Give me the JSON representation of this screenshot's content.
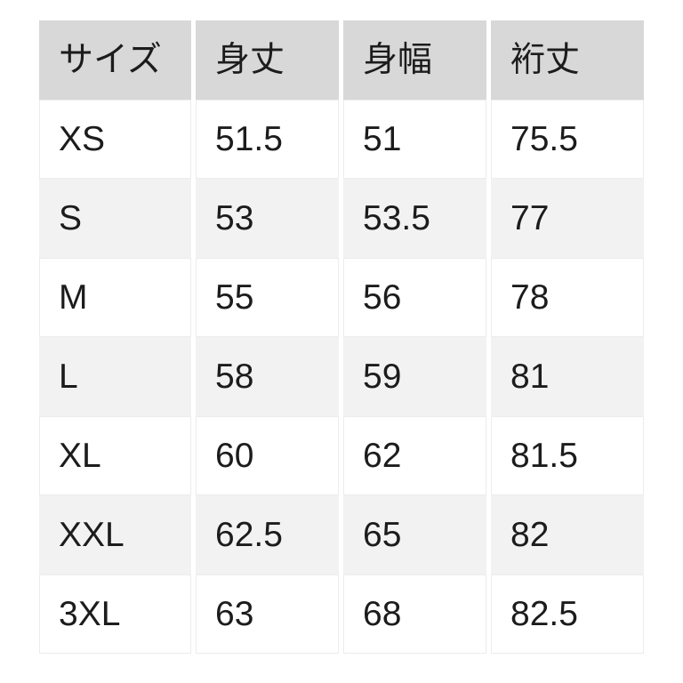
{
  "chart_data": {
    "type": "table",
    "columns": [
      "サイズ",
      "身丈",
      "身幅",
      "裄丈"
    ],
    "rows": [
      [
        "XS",
        "51.5",
        "51",
        "75.5"
      ],
      [
        "S",
        "53",
        "53.5",
        "77"
      ],
      [
        "M",
        "55",
        "56",
        "78"
      ],
      [
        "L",
        "58",
        "59",
        "81"
      ],
      [
        "XL",
        "60",
        "62",
        "81.5"
      ],
      [
        "XXL",
        "62.5",
        "65",
        "82"
      ],
      [
        "3XL",
        "63",
        "68",
        "82.5"
      ]
    ]
  },
  "colors": {
    "header_bg": "#d8d8d8",
    "row_bg": "#ffffff",
    "row_alt_bg": "#f2f2f2",
    "cell_border": "#ececec",
    "text": "#1c1c1c",
    "page_bg": "#ffffff"
  }
}
